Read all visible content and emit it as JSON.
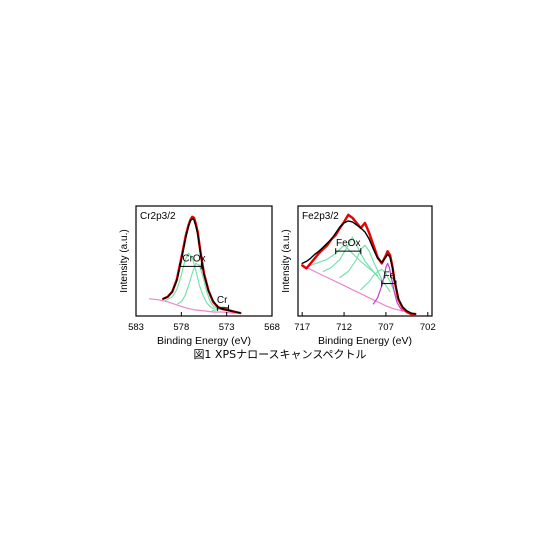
{
  "caption": "図1  XPSナロースキャンスペクトル",
  "colors": {
    "data": "#e60000",
    "envelope": "#000000",
    "component": "#6fe0a8",
    "background": "#e986cc",
    "metal": "#c040c8"
  },
  "chart_data": [
    {
      "type": "line",
      "panel_label": "Cr2p3/2",
      "xlabel": "Binding Energy (eV)",
      "ylabel": "Intensity (a.u.)",
      "xlim": [
        583,
        568
      ],
      "ylim": [
        0,
        1
      ],
      "x_reversed": true,
      "xticks": [
        583,
        578,
        573,
        568
      ],
      "annotations": [
        {
          "text": "CrOx",
          "x": 576.6,
          "y": 0.53,
          "bracket": [
            578.2,
            575.8
          ]
        },
        {
          "text": "Cr",
          "x": 573.5,
          "y": 0.12,
          "bracket": [
            574.0,
            572.8
          ]
        }
      ],
      "series": [
        {
          "role": "data",
          "x": [
            580.0,
            579.5,
            579.0,
            578.5,
            578.0,
            577.5,
            577.2,
            577.0,
            576.8,
            576.6,
            576.4,
            576.2,
            576.0,
            575.8,
            575.5,
            575.0,
            574.5,
            574.0,
            573.5,
            573.0,
            572.5,
            572.0,
            571.5
          ],
          "y": [
            0.17,
            0.19,
            0.24,
            0.36,
            0.57,
            0.8,
            0.9,
            0.95,
            0.98,
            0.97,
            0.91,
            0.83,
            0.7,
            0.58,
            0.42,
            0.25,
            0.14,
            0.09,
            0.07,
            0.06,
            0.05,
            0.04,
            0.03
          ]
        },
        {
          "role": "envelope",
          "x": [
            580.0,
            579.5,
            579.0,
            578.5,
            578.0,
            577.5,
            577.2,
            577.0,
            576.8,
            576.6,
            576.4,
            576.2,
            576.0,
            575.8,
            575.5,
            575.0,
            574.5,
            574.0,
            573.5,
            573.0,
            572.5,
            572.0,
            571.5
          ],
          "y": [
            0.17,
            0.19,
            0.24,
            0.35,
            0.55,
            0.78,
            0.89,
            0.94,
            0.96,
            0.95,
            0.89,
            0.81,
            0.69,
            0.57,
            0.41,
            0.25,
            0.15,
            0.09,
            0.07,
            0.06,
            0.05,
            0.04,
            0.03
          ]
        },
        {
          "role": "component",
          "x": [
            579.8,
            579.0,
            578.5,
            578.0,
            577.6,
            577.2,
            576.8,
            576.4,
            576.0,
            575.6,
            575.2,
            574.8,
            574.4
          ],
          "y": [
            0.15,
            0.19,
            0.26,
            0.4,
            0.55,
            0.62,
            0.58,
            0.45,
            0.3,
            0.2,
            0.13,
            0.09,
            0.07
          ]
        },
        {
          "role": "component",
          "x": [
            578.4,
            578.0,
            577.6,
            577.2,
            576.8,
            576.4,
            576.0,
            575.6,
            575.2,
            574.8,
            574.4,
            574.0,
            573.6
          ],
          "y": [
            0.12,
            0.14,
            0.2,
            0.3,
            0.42,
            0.52,
            0.5,
            0.38,
            0.24,
            0.14,
            0.09,
            0.07,
            0.06
          ]
        },
        {
          "role": "component",
          "x": [
            574.6,
            574.2,
            573.8,
            573.4,
            573.0,
            572.6,
            572.2,
            571.8
          ],
          "y": [
            0.05,
            0.06,
            0.08,
            0.09,
            0.08,
            0.06,
            0.05,
            0.04
          ]
        },
        {
          "role": "background",
          "x": [
            581.5,
            580.5,
            579.5,
            578.5,
            577.5,
            576.5,
            575.5,
            574.5,
            573.5,
            572.5,
            571.5
          ],
          "y": [
            0.17,
            0.16,
            0.14,
            0.11,
            0.08,
            0.06,
            0.05,
            0.04,
            0.04,
            0.03,
            0.03
          ]
        }
      ]
    },
    {
      "type": "line",
      "panel_label": "Fe2p3/2",
      "xlabel": "Binding Energy (eV)",
      "ylabel": "Intensity (a.u.)",
      "xlim": [
        717.5,
        701.5
      ],
      "ylim": [
        0,
        1
      ],
      "x_reversed": true,
      "xticks": [
        717,
        712,
        707,
        702
      ],
      "annotations": [
        {
          "text": "FeOx",
          "x": 711.5,
          "y": 0.68,
          "bracket": [
            713.0,
            710.0
          ]
        },
        {
          "text": "Fe",
          "x": 706.6,
          "y": 0.36,
          "bracket": [
            707.5,
            705.8
          ]
        }
      ],
      "series": [
        {
          "role": "data",
          "x": [
            717.0,
            716.5,
            716.0,
            715.5,
            715.0,
            714.5,
            714.0,
            713.5,
            713.0,
            712.5,
            712.0,
            711.5,
            711.0,
            710.5,
            710.0,
            709.5,
            709.0,
            708.5,
            708.0,
            707.5,
            707.0,
            706.8,
            706.5,
            706.2,
            706.0,
            705.7,
            705.5,
            705.0,
            704.5,
            704.0,
            703.5
          ],
          "y": [
            0.5,
            0.47,
            0.52,
            0.57,
            0.62,
            0.66,
            0.7,
            0.76,
            0.8,
            0.87,
            0.93,
            1.0,
            0.97,
            0.92,
            0.87,
            0.92,
            0.82,
            0.7,
            0.58,
            0.52,
            0.6,
            0.64,
            0.6,
            0.48,
            0.36,
            0.24,
            0.16,
            0.08,
            0.04,
            0.02,
            0.02
          ]
        },
        {
          "role": "envelope",
          "x": [
            717.0,
            716.5,
            716.0,
            715.5,
            715.0,
            714.5,
            714.0,
            713.5,
            713.0,
            712.5,
            712.0,
            711.5,
            711.0,
            710.5,
            710.0,
            709.5,
            709.0,
            708.5,
            708.0,
            707.5,
            707.0,
            706.8,
            706.5,
            706.2,
            706.0,
            705.7,
            705.5,
            705.0,
            704.5,
            704.0,
            703.5
          ],
          "y": [
            0.52,
            0.54,
            0.57,
            0.61,
            0.64,
            0.68,
            0.72,
            0.76,
            0.82,
            0.88,
            0.92,
            0.94,
            0.93,
            0.9,
            0.87,
            0.83,
            0.76,
            0.66,
            0.57,
            0.53,
            0.58,
            0.61,
            0.58,
            0.47,
            0.36,
            0.25,
            0.17,
            0.09,
            0.05,
            0.03,
            0.02
          ]
        },
        {
          "role": "component",
          "x": [
            716.0,
            715.0,
            714.0,
            713.0,
            712.0,
            711.0,
            710.0,
            709.0,
            708.0
          ],
          "y": [
            0.5,
            0.53,
            0.56,
            0.62,
            0.7,
            0.62,
            0.54,
            0.47,
            0.4
          ]
        },
        {
          "role": "component",
          "x": [
            714.5,
            713.5,
            712.5,
            711.5,
            711.0,
            710.5,
            709.5,
            708.5,
            707.5
          ],
          "y": [
            0.44,
            0.48,
            0.56,
            0.7,
            0.78,
            0.7,
            0.54,
            0.44,
            0.34
          ]
        },
        {
          "role": "component",
          "x": [
            712.5,
            711.5,
            710.5,
            710.0,
            709.5,
            709.0,
            708.5,
            707.5,
            706.5
          ],
          "y": [
            0.38,
            0.44,
            0.56,
            0.66,
            0.7,
            0.64,
            0.54,
            0.36,
            0.24
          ]
        },
        {
          "role": "component",
          "x": [
            710.0,
            709.0,
            708.5,
            708.0,
            707.5,
            707.0,
            706.5,
            706.0,
            705.5,
            705.0
          ],
          "y": [
            0.26,
            0.34,
            0.4,
            0.44,
            0.46,
            0.42,
            0.34,
            0.24,
            0.15,
            0.08
          ]
        },
        {
          "role": "metal",
          "x": [
            708.5,
            708.0,
            707.5,
            707.2,
            707.0,
            706.8,
            706.6,
            706.3,
            706.0,
            705.7,
            705.3,
            705.0
          ],
          "y": [
            0.12,
            0.18,
            0.3,
            0.4,
            0.48,
            0.52,
            0.48,
            0.36,
            0.24,
            0.14,
            0.08,
            0.05
          ]
        },
        {
          "role": "background",
          "x": [
            717.0,
            716.0,
            715.0,
            714.0,
            713.0,
            712.0,
            711.0,
            710.0,
            709.0,
            708.0,
            707.0,
            706.0,
            705.0,
            704.0,
            703.5
          ],
          "y": [
            0.5,
            0.46,
            0.42,
            0.38,
            0.34,
            0.3,
            0.26,
            0.22,
            0.18,
            0.14,
            0.1,
            0.07,
            0.05,
            0.03,
            0.02
          ]
        }
      ]
    }
  ]
}
